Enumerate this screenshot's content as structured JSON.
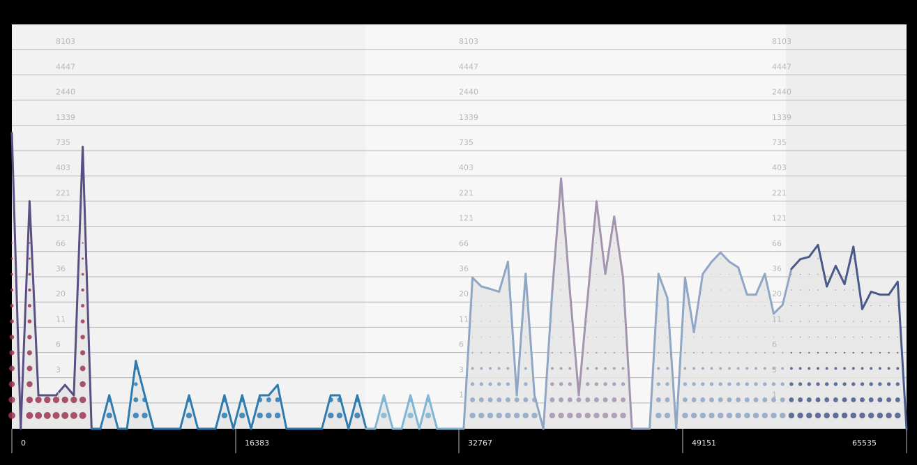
{
  "chart_data": {
    "type": "line",
    "title": "",
    "xlabel": "",
    "ylabel": "",
    "yscale": "log",
    "ylim": [
      0,
      8103
    ],
    "xlim": [
      0,
      65535
    ],
    "y_ticks": [
      1,
      3,
      6,
      11,
      20,
      36,
      66,
      121,
      221,
      403,
      735,
      1339,
      2440,
      4447,
      8103
    ],
    "x_ticks": [
      0,
      16383,
      32767,
      49151,
      65535
    ],
    "grid": true,
    "legend": "none",
    "colors": {
      "background": "#000000",
      "panel_a": "#f2f2f2",
      "panel_b": "#f7f7f7",
      "panel_c": "#eeeeee",
      "gridline": "#b4b4b4",
      "area_fill": "#e6e6e6",
      "dot_red": "#9b3550",
      "series_dark_purple": "#5a4f82",
      "series_blue": "#2e7bb0",
      "series_light_blue": "#7fb6d6",
      "series_steel": "#8fa6c4",
      "series_mauve": "#a394b0",
      "series_slate": "#49598a"
    },
    "series": [
      {
        "values": [
          800,
          0,
          140,
          1,
          1,
          1,
          1.3,
          1,
          560,
          0,
          0,
          1,
          0,
          0,
          2.4,
          1,
          0,
          0,
          0,
          0,
          1,
          0,
          0,
          0,
          1,
          0,
          1,
          0,
          1,
          1,
          1.3,
          0,
          0,
          0,
          0,
          0,
          1,
          1,
          0,
          1,
          0,
          0,
          1,
          0,
          0,
          1,
          0,
          1,
          0,
          0,
          0,
          0,
          20,
          16,
          15,
          14,
          30,
          1,
          22,
          1,
          0,
          14,
          250,
          14,
          1,
          12,
          140,
          22,
          95,
          20,
          0,
          0,
          0,
          22,
          12,
          0,
          20,
          5,
          22,
          30,
          38,
          30,
          26,
          13,
          13,
          22,
          8,
          10,
          25,
          32,
          34,
          46,
          16,
          27,
          17,
          44,
          9,
          14,
          13,
          13,
          18,
          0
        ]
      }
    ]
  }
}
